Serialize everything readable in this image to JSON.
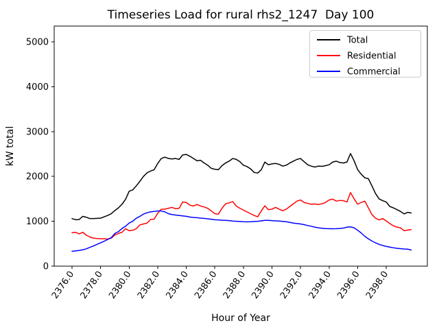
{
  "chart_data": {
    "type": "line",
    "title": "Timeseries Load for rural rhs2_1247  Day 100",
    "xlabel": "Hour of Year",
    "ylabel": "kW total",
    "grid": false,
    "legend_position": "upper right",
    "xlim": [
      2374.75,
      2400.88
    ],
    "ylim": [
      0,
      5352
    ],
    "x_start": 2376.0,
    "x_step": 0.25,
    "xticks": {
      "values": [
        2376,
        2378,
        2380,
        2382,
        2384,
        2386,
        2388,
        2390,
        2392,
        2394,
        2396,
        2398
      ],
      "labels": [
        "2376.0",
        "2378.0",
        "2380.0",
        "2382.0",
        "2384.0",
        "2386.0",
        "2388.0",
        "2390.0",
        "2392.0",
        "2394.0",
        "2396.0",
        "2398.0"
      ]
    },
    "yticks": {
      "values": [
        0,
        1000,
        2000,
        3000,
        4000,
        5000
      ],
      "labels": [
        "0",
        "1000",
        "2000",
        "3000",
        "4000",
        "5000"
      ]
    },
    "series": [
      {
        "name": "Total",
        "color": "#000000",
        "values": [
          1060,
          1035,
          1040,
          1110,
          1090,
          1060,
          1060,
          1065,
          1070,
          1100,
          1130,
          1170,
          1240,
          1300,
          1380,
          1490,
          1670,
          1700,
          1790,
          1890,
          2000,
          2080,
          2120,
          2150,
          2290,
          2400,
          2430,
          2400,
          2390,
          2400,
          2380,
          2480,
          2490,
          2450,
          2400,
          2350,
          2360,
          2300,
          2250,
          2180,
          2160,
          2150,
          2240,
          2300,
          2340,
          2400,
          2380,
          2330,
          2250,
          2220,
          2170,
          2090,
          2075,
          2150,
          2320,
          2260,
          2280,
          2290,
          2270,
          2230,
          2250,
          2300,
          2340,
          2380,
          2400,
          2330,
          2260,
          2230,
          2210,
          2230,
          2225,
          2240,
          2260,
          2320,
          2340,
          2310,
          2300,
          2320,
          2510,
          2350,
          2150,
          2050,
          1970,
          1950,
          1790,
          1620,
          1500,
          1460,
          1430,
          1330,
          1300,
          1260,
          1220,
          1165,
          1200,
          1185
        ]
      },
      {
        "name": "Residential",
        "color": "#ff0000",
        "values": [
          745,
          755,
          720,
          755,
          690,
          650,
          625,
          615,
          612,
          610,
          605,
          625,
          695,
          730,
          755,
          835,
          790,
          800,
          835,
          920,
          940,
          960,
          1040,
          1050,
          1180,
          1270,
          1270,
          1290,
          1310,
          1280,
          1290,
          1430,
          1420,
          1360,
          1340,
          1375,
          1340,
          1320,
          1290,
          1230,
          1170,
          1160,
          1290,
          1390,
          1410,
          1440,
          1340,
          1290,
          1250,
          1210,
          1170,
          1130,
          1100,
          1230,
          1345,
          1260,
          1270,
          1310,
          1270,
          1235,
          1270,
          1330,
          1390,
          1450,
          1475,
          1420,
          1400,
          1380,
          1385,
          1375,
          1390,
          1420,
          1475,
          1495,
          1450,
          1465,
          1460,
          1430,
          1640,
          1500,
          1380,
          1420,
          1450,
          1300,
          1150,
          1070,
          1030,
          1060,
          1010,
          950,
          900,
          870,
          855,
          790,
          805,
          815
        ]
      },
      {
        "name": "Commercial",
        "color": "#0000ff",
        "values": [
          330,
          340,
          350,
          365,
          385,
          420,
          450,
          485,
          520,
          555,
          595,
          635,
          730,
          770,
          840,
          890,
          960,
          1000,
          1070,
          1110,
          1160,
          1190,
          1210,
          1220,
          1230,
          1230,
          1210,
          1170,
          1150,
          1140,
          1130,
          1120,
          1110,
          1095,
          1085,
          1080,
          1070,
          1065,
          1055,
          1045,
          1035,
          1030,
          1025,
          1020,
          1015,
          1005,
          1000,
          995,
          990,
          988,
          990,
          995,
          1000,
          1010,
          1020,
          1020,
          1015,
          1010,
          1005,
          998,
          990,
          975,
          960,
          950,
          940,
          925,
          905,
          890,
          870,
          855,
          845,
          838,
          835,
          833,
          835,
          840,
          848,
          870,
          875,
          855,
          800,
          740,
          665,
          610,
          560,
          520,
          485,
          462,
          440,
          425,
          410,
          398,
          390,
          382,
          378,
          360
        ]
      }
    ]
  }
}
